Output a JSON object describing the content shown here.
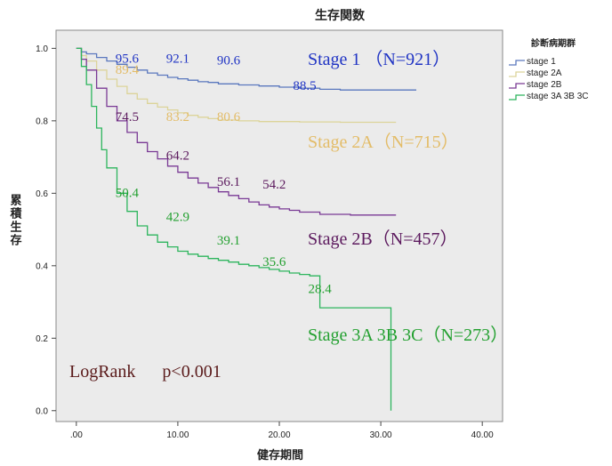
{
  "chart_data": {
    "type": "line",
    "title": "生存関数",
    "xlabel": "健存期間",
    "ylabel": "累積生存",
    "xlim": [
      -2,
      42
    ],
    "ylim": [
      -0.03,
      1.05
    ],
    "x_ticks": [
      ".00",
      "10.00",
      "20.00",
      "30.00",
      "40.00"
    ],
    "x_tick_values": [
      0,
      10,
      20,
      30,
      40
    ],
    "y_ticks": [
      "0.0",
      "0.2",
      "0.4",
      "0.6",
      "0.8",
      "1.0"
    ],
    "y_tick_values": [
      0,
      0.2,
      0.4,
      0.6,
      0.8,
      1.0
    ],
    "grid": false,
    "background": "#ebebeb",
    "legend": {
      "title": "診断病期群",
      "position": "right",
      "entries": [
        "stage 1",
        "stage 2A",
        "stage 2B",
        "stage 3A 3B 3C"
      ]
    },
    "series": [
      {
        "name": "stage 1",
        "color": "#5b78be",
        "group_label": "Stage  1 （N=921）",
        "label_color": "#2034c4",
        "points": [
          [
            0,
            1.0
          ],
          [
            0.5,
            0.99
          ],
          [
            1,
            0.985
          ],
          [
            2,
            0.975
          ],
          [
            3,
            0.965
          ],
          [
            4,
            0.956
          ],
          [
            5,
            0.948
          ],
          [
            6,
            0.94
          ],
          [
            7,
            0.932
          ],
          [
            8,
            0.926
          ],
          [
            9,
            0.92
          ],
          [
            10,
            0.916
          ],
          [
            11,
            0.912
          ],
          [
            12,
            0.908
          ],
          [
            13,
            0.906
          ],
          [
            14,
            0.902
          ],
          [
            16,
            0.899
          ],
          [
            18,
            0.896
          ],
          [
            20,
            0.893
          ],
          [
            22,
            0.89
          ],
          [
            24,
            0.887
          ],
          [
            26,
            0.885
          ],
          [
            28,
            0.885
          ],
          [
            30,
            0.885
          ],
          [
            33.5,
            0.885
          ]
        ],
        "annotations": [
          {
            "text": "95.6",
            "x": 5,
            "y": 0.96
          },
          {
            "text": "92.1",
            "x": 10,
            "y": 0.96
          },
          {
            "text": "90.6",
            "x": 15,
            "y": 0.955
          },
          {
            "text": "88.5",
            "x": 22.5,
            "y": 0.885
          }
        ]
      },
      {
        "name": "stage 2A",
        "color": "#dcd49a",
        "group_label": "Stage 2A（N=715）",
        "label_color": "#e3bc68",
        "points": [
          [
            0,
            1.0
          ],
          [
            0.5,
            0.98
          ],
          [
            1,
            0.965
          ],
          [
            2,
            0.94
          ],
          [
            3,
            0.915
          ],
          [
            4,
            0.895
          ],
          [
            5,
            0.875
          ],
          [
            6,
            0.86
          ],
          [
            7,
            0.848
          ],
          [
            8,
            0.838
          ],
          [
            9,
            0.83
          ],
          [
            10,
            0.822
          ],
          [
            11,
            0.815
          ],
          [
            12,
            0.81
          ],
          [
            13,
            0.806
          ],
          [
            14,
            0.802
          ],
          [
            16,
            0.8
          ],
          [
            18,
            0.798
          ],
          [
            22,
            0.797
          ],
          [
            26,
            0.796
          ],
          [
            31.5,
            0.796
          ]
        ],
        "annotations": [
          {
            "text": "89.4",
            "x": 5,
            "y": 0.93
          },
          {
            "text": "83.2",
            "x": 10,
            "y": 0.8
          },
          {
            "text": "80.6",
            "x": 15,
            "y": 0.8
          }
        ]
      },
      {
        "name": "stage 2B",
        "color": "#7a3a95",
        "group_label": "Stage 2B（N=457）",
        "label_color": "#5c1a5e",
        "points": [
          [
            0,
            1.0
          ],
          [
            0.5,
            0.97
          ],
          [
            1,
            0.94
          ],
          [
            2,
            0.89
          ],
          [
            3,
            0.84
          ],
          [
            4,
            0.8
          ],
          [
            5,
            0.768
          ],
          [
            6,
            0.74
          ],
          [
            7,
            0.715
          ],
          [
            8,
            0.695
          ],
          [
            9,
            0.675
          ],
          [
            10,
            0.658
          ],
          [
            11,
            0.642
          ],
          [
            12,
            0.628
          ],
          [
            13,
            0.616
          ],
          [
            14,
            0.604
          ],
          [
            15,
            0.594
          ],
          [
            16,
            0.585
          ],
          [
            17,
            0.576
          ],
          [
            18,
            0.568
          ],
          [
            19,
            0.562
          ],
          [
            20,
            0.557
          ],
          [
            21,
            0.553
          ],
          [
            22,
            0.548
          ],
          [
            24,
            0.542
          ],
          [
            27,
            0.54
          ],
          [
            31.5,
            0.54
          ]
        ],
        "annotations": [
          {
            "text": "74.5",
            "x": 5,
            "y": 0.8
          },
          {
            "text": "64.2",
            "x": 10,
            "y": 0.693
          },
          {
            "text": "56.1",
            "x": 15,
            "y": 0.62
          },
          {
            "text": "54.2",
            "x": 19.5,
            "y": 0.613
          }
        ]
      },
      {
        "name": "stage 3A 3B 3C",
        "color": "#2db55d",
        "group_label": "Stage 3A 3B 3C（N=273）",
        "label_color": "#23a030",
        "points": [
          [
            0,
            1.0
          ],
          [
            0.5,
            0.95
          ],
          [
            1,
            0.9
          ],
          [
            1.5,
            0.84
          ],
          [
            2,
            0.78
          ],
          [
            2.5,
            0.72
          ],
          [
            3,
            0.67
          ],
          [
            4,
            0.6
          ],
          [
            5,
            0.55
          ],
          [
            6,
            0.51
          ],
          [
            7,
            0.485
          ],
          [
            8,
            0.465
          ],
          [
            9,
            0.452
          ],
          [
            10,
            0.44
          ],
          [
            11,
            0.432
          ],
          [
            12,
            0.426
          ],
          [
            13,
            0.42
          ],
          [
            14,
            0.415
          ],
          [
            15,
            0.41
          ],
          [
            16,
            0.404
          ],
          [
            17,
            0.4
          ],
          [
            18,
            0.395
          ],
          [
            19,
            0.39
          ],
          [
            20,
            0.385
          ],
          [
            21,
            0.38
          ],
          [
            22,
            0.376
          ],
          [
            23,
            0.372
          ],
          [
            24,
            0.372
          ],
          [
            24,
            0.284
          ],
          [
            25,
            0.284
          ],
          [
            31,
            0.284
          ],
          [
            31,
            0.0
          ]
        ],
        "annotations": [
          {
            "text": "50.4",
            "x": 5,
            "y": 0.59
          },
          {
            "text": "42.9",
            "x": 10,
            "y": 0.523
          },
          {
            "text": "39.1",
            "x": 15,
            "y": 0.458
          },
          {
            "text": "35.6",
            "x": 19.5,
            "y": 0.4
          },
          {
            "text": "28.4",
            "x": 24,
            "y": 0.325
          }
        ]
      }
    ],
    "annotation_text": "LogRank      p<0.001"
  }
}
